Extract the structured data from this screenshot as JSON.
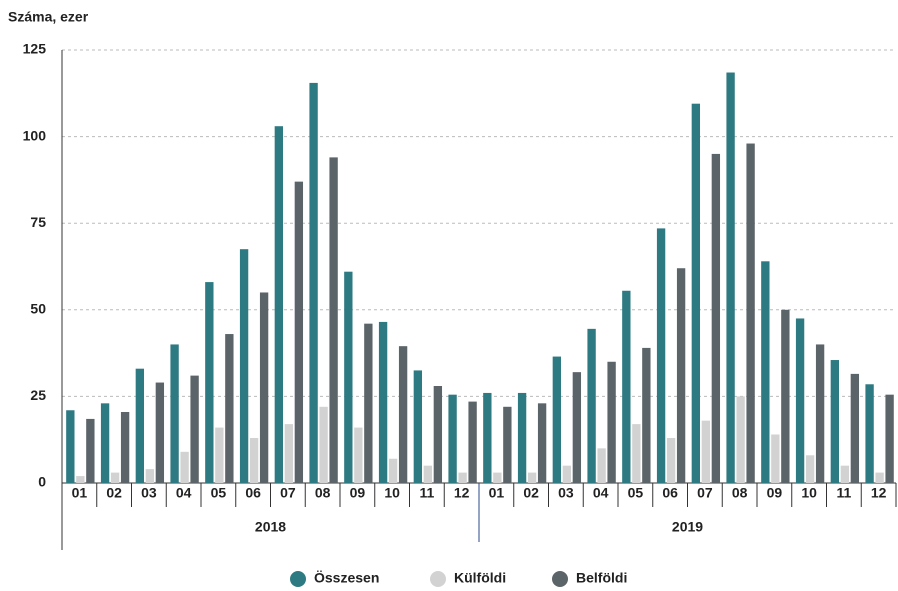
{
  "chart_data": {
    "type": "bar",
    "y_title": "Száma, ezer",
    "categories": [
      "01",
      "02",
      "03",
      "04",
      "05",
      "06",
      "07",
      "08",
      "09",
      "10",
      "11",
      "12",
      "01",
      "02",
      "03",
      "04",
      "05",
      "06",
      "07",
      "08",
      "09",
      "10",
      "11",
      "12"
    ],
    "x_groups": [
      "2018",
      "2019"
    ],
    "series": [
      {
        "name": "Összesen",
        "color": "#2e7a82",
        "values": [
          21,
          23,
          33,
          40,
          58,
          67.5,
          103,
          115.5,
          61,
          46.5,
          32.5,
          25.5,
          26,
          26,
          36.5,
          44.5,
          55.5,
          73.5,
          109.5,
          118.5,
          64,
          47.5,
          35.5,
          28.5
        ]
      },
      {
        "name": "Külföldi",
        "color": "#d2d2d2",
        "values": [
          2,
          3,
          4,
          9,
          16,
          13,
          17,
          22,
          16,
          7,
          5,
          3,
          3,
          3,
          5,
          10,
          17,
          13,
          18,
          25,
          14,
          8,
          5,
          3
        ]
      },
      {
        "name": "Belföldi",
        "color": "#5b6469",
        "values": [
          18.5,
          20.5,
          29,
          31,
          43,
          55,
          87,
          94,
          46,
          39.5,
          28,
          23.5,
          22,
          23,
          32,
          35,
          39,
          62,
          95,
          98,
          50,
          40,
          31.5,
          25.5
        ]
      }
    ],
    "ylim": [
      0,
      125
    ],
    "yticks": [
      0,
      25,
      50,
      75,
      100,
      125
    ],
    "grid": true
  }
}
